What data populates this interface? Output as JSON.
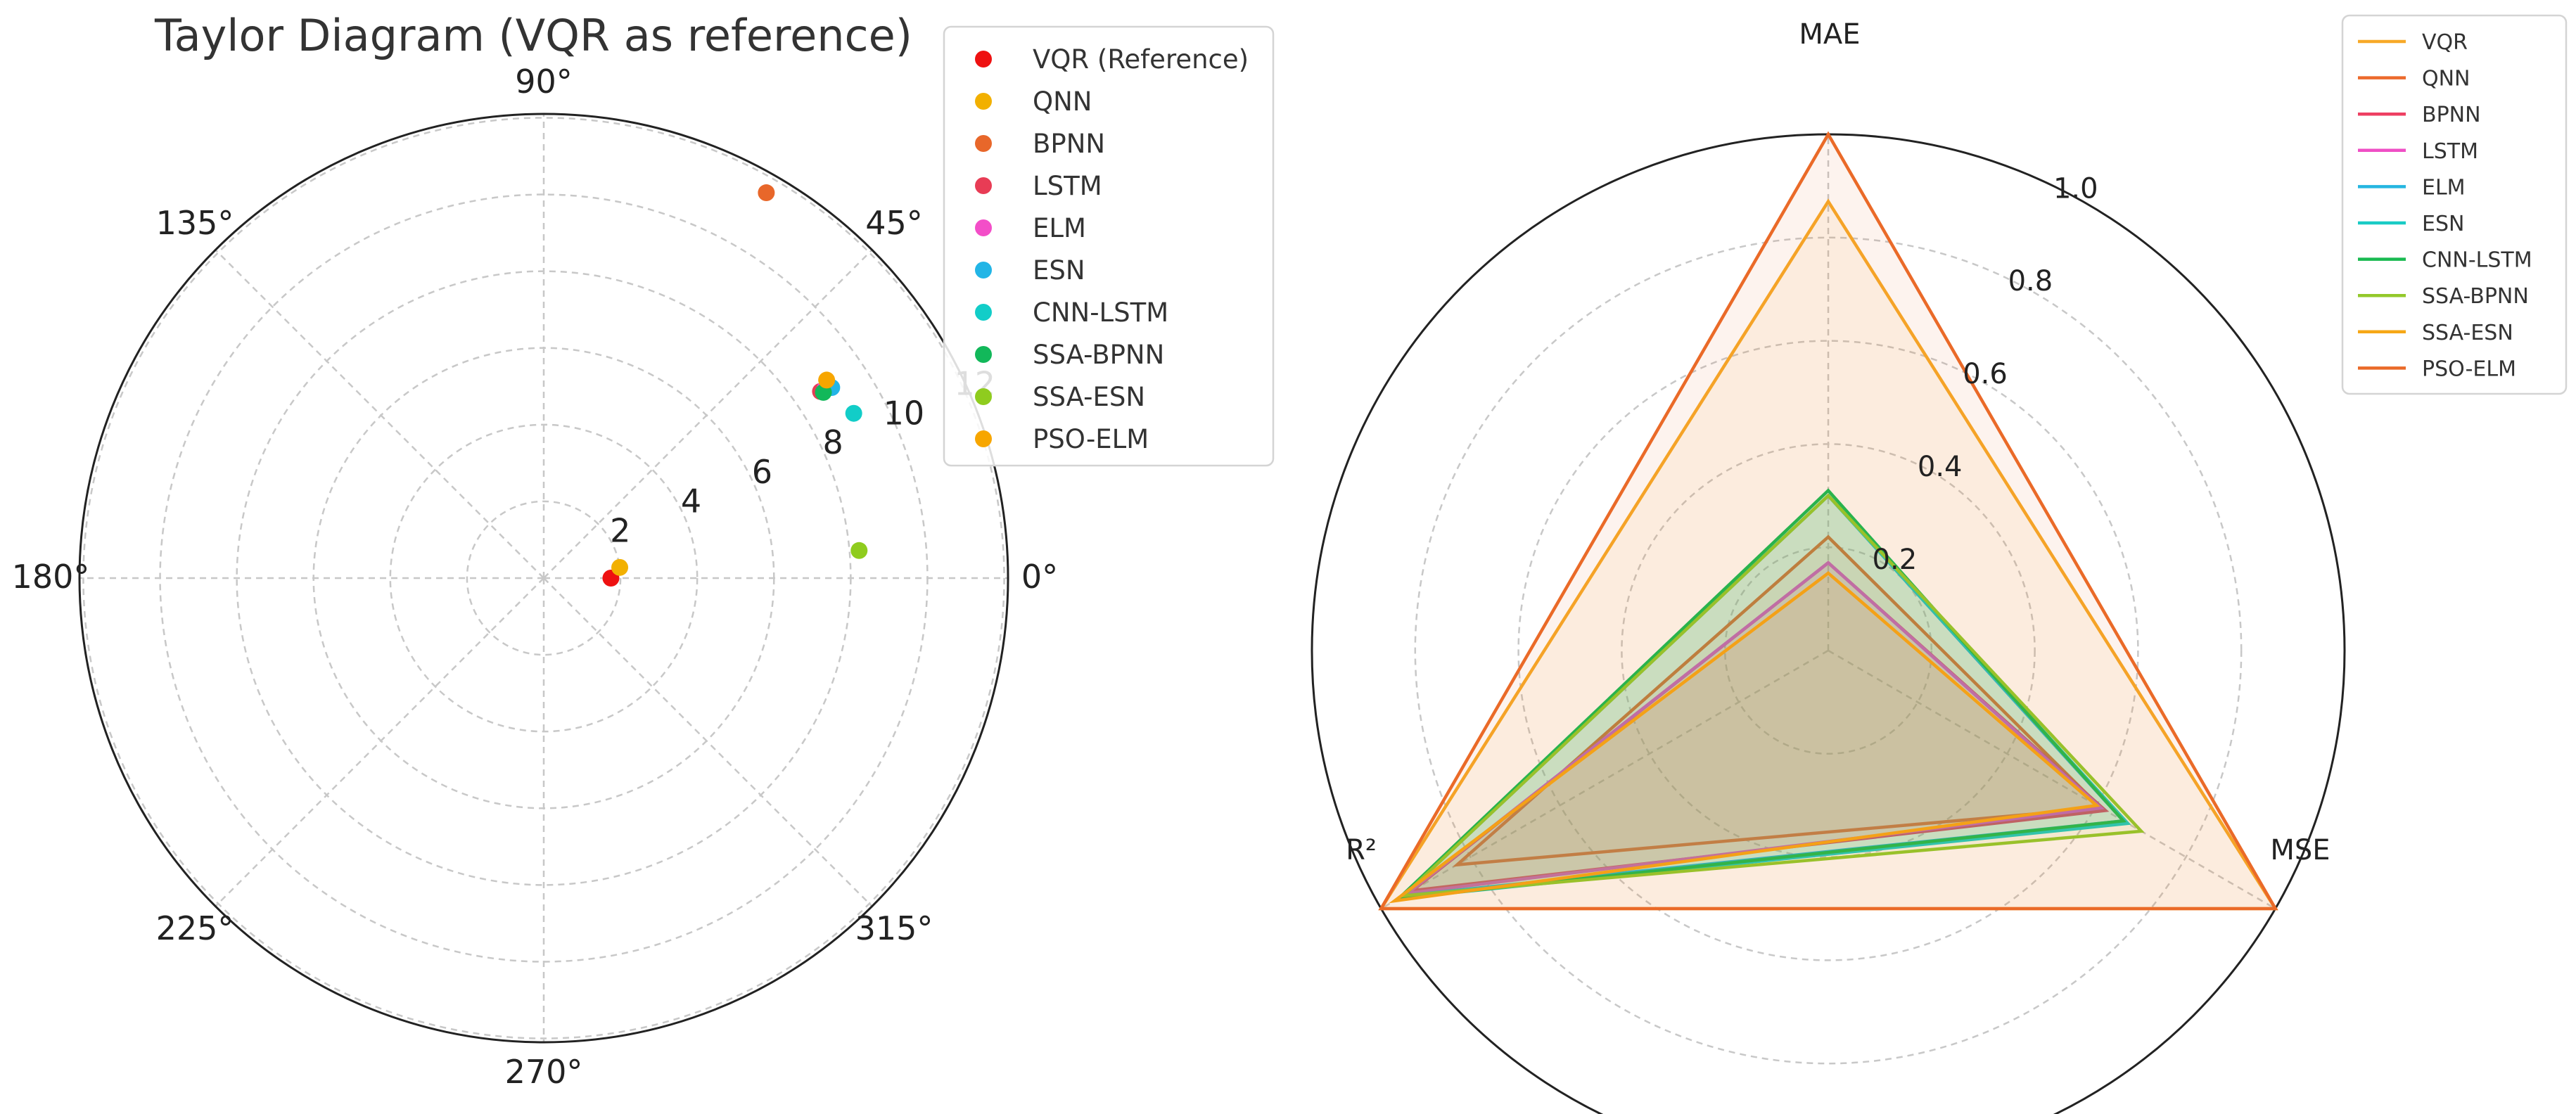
{
  "chart_data": [
    {
      "type": "scatter",
      "subtype": "taylor-diagram (polar)",
      "title": "Taylor Diagram (VQR as reference)",
      "angle_ticks": [
        "0°",
        "45°",
        "90°",
        "135°",
        "180°",
        "225°",
        "270°",
        "315°"
      ],
      "radial_ticks": [
        "2",
        "4",
        "6",
        "8",
        "10",
        "12"
      ],
      "rlim": [
        0,
        12.1
      ],
      "grid": true,
      "legend_position": "top-right",
      "points": [
        {
          "name": "VQR (Reference)",
          "r": 1.75,
          "theta_deg": 0,
          "color": "#ee1111"
        },
        {
          "name": "QNN",
          "r": 2.0,
          "theta_deg": 8,
          "color": "#f2b000"
        },
        {
          "name": "BPNN",
          "r": 11.6,
          "theta_deg": 60,
          "color": "#e8672a"
        },
        {
          "name": "LSTM",
          "r": 8.7,
          "theta_deg": 34,
          "color": "#e83c55"
        },
        {
          "name": "ELM",
          "r": 8.85,
          "theta_deg": 34,
          "color": "#f34ec8"
        },
        {
          "name": "ESN",
          "r": 9.0,
          "theta_deg": 33.5,
          "color": "#22b5e6"
        },
        {
          "name": "CNN-LSTM",
          "r": 9.15,
          "theta_deg": 28,
          "color": "#12cdc8"
        },
        {
          "name": "SSA-BPNN",
          "r": 8.75,
          "theta_deg": 33.6,
          "color": "#12b85a"
        },
        {
          "name": "SSA-ESN",
          "r": 8.25,
          "theta_deg": 5,
          "color": "#8fcc1e"
        },
        {
          "name": "PSO-ELM",
          "r": 9.0,
          "theta_deg": 35,
          "color": "#f7a600"
        }
      ]
    },
    {
      "type": "radar",
      "axes": [
        "MAE",
        "MSE",
        "R²"
      ],
      "radial_ticks": [
        "0.2",
        "0.4",
        "0.6",
        "0.8",
        "1.0"
      ],
      "rlim": [
        0,
        1.0
      ],
      "grid": true,
      "legend_position": "top-right",
      "series": [
        {
          "name": "VQR",
          "color": "#f7a928",
          "values": [
            0.87,
            1.0,
            1.0
          ]
        },
        {
          "name": "QNN",
          "color": "#ec6a2c",
          "values": [
            0.22,
            0.61,
            0.83
          ]
        },
        {
          "name": "BPNN",
          "color": "#ee3f62",
          "values": [
            0.17,
            0.62,
            0.93
          ]
        },
        {
          "name": "LSTM",
          "color": "#ef4fc5",
          "values": [
            0.17,
            0.61,
            0.94
          ]
        },
        {
          "name": "ELM",
          "color": "#25b6e1",
          "values": [
            0.3,
            0.66,
            0.95
          ]
        },
        {
          "name": "ESN",
          "color": "#19cbc5",
          "values": [
            0.3,
            0.67,
            0.96
          ]
        },
        {
          "name": "CNN-LSTM",
          "color": "#19ba51",
          "values": [
            0.31,
            0.66,
            0.96
          ]
        },
        {
          "name": "SSA-BPNN",
          "color": "#93c92b",
          "values": [
            0.3,
            0.7,
            0.95
          ]
        },
        {
          "name": "SSA-ESN",
          "color": "#f6a716",
          "values": [
            0.15,
            0.6,
            0.97
          ]
        },
        {
          "name": "PSO-ELM",
          "color": "#ea6a28",
          "values": [
            1.0,
            1.0,
            1.0
          ]
        }
      ]
    }
  ]
}
